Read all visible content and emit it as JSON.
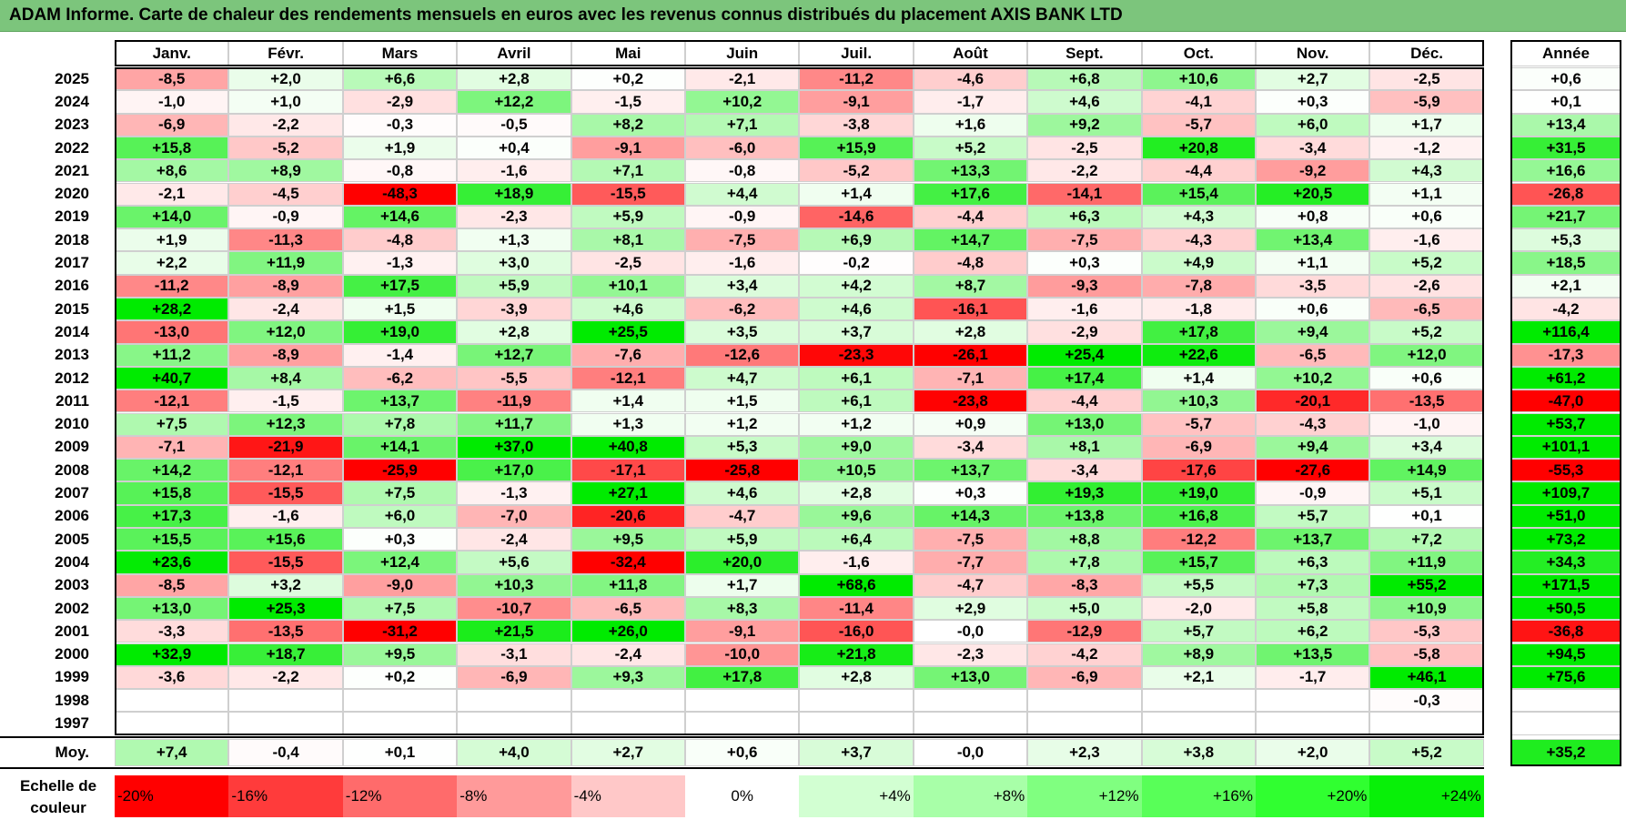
{
  "title": "ADAM Informe. Carte de chaleur des rendements mensuels en euros avec les revenus connus distribués du placement AXIS BANK LTD",
  "chart_data": {
    "type": "heatmap",
    "title": "ADAM Informe. Carte de chaleur des rendements mensuels en euros avec les revenus connus distribués du placement AXIS BANK LTD",
    "months": [
      "Janv.",
      "Févr.",
      "Mars",
      "Avril",
      "Mai",
      "Juin",
      "Juil.",
      "Août",
      "Sept.",
      "Oct.",
      "Nov.",
      "Déc."
    ],
    "year_header": "Année",
    "rows": [
      {
        "year": "2025",
        "values": [
          "-8,5",
          "+2,0",
          "+6,6",
          "+2,8",
          "+0,2",
          "-2,1",
          "-11,2",
          "-4,6",
          "+6,8",
          "+10,6",
          "+2,7",
          "-2,5"
        ],
        "annual": "+0,6"
      },
      {
        "year": "2024",
        "values": [
          "-1,0",
          "+1,0",
          "-2,9",
          "+12,2",
          "-1,5",
          "+10,2",
          "-9,1",
          "-1,7",
          "+4,6",
          "-4,1",
          "+0,3",
          "-5,9"
        ],
        "annual": "+0,1"
      },
      {
        "year": "2023",
        "values": [
          "-6,9",
          "-2,2",
          "-0,3",
          "-0,5",
          "+8,2",
          "+7,1",
          "-3,8",
          "+1,6",
          "+9,2",
          "-5,7",
          "+6,0",
          "+1,7"
        ],
        "annual": "+13,4"
      },
      {
        "year": "2022",
        "values": [
          "+15,8",
          "-5,2",
          "+1,9",
          "+0,4",
          "-9,1",
          "-6,0",
          "+15,9",
          "+5,2",
          "-2,5",
          "+20,8",
          "-3,4",
          "-1,2"
        ],
        "annual": "+31,5"
      },
      {
        "year": "2021",
        "values": [
          "+8,6",
          "+8,9",
          "-0,8",
          "-1,6",
          "+7,1",
          "-0,8",
          "-5,2",
          "+13,3",
          "-2,2",
          "-4,4",
          "-9,2",
          "+4,3"
        ],
        "annual": "+16,6"
      },
      {
        "year": "2020",
        "values": [
          "-2,1",
          "-4,5",
          "-48,3",
          "+18,9",
          "-15,5",
          "+4,4",
          "+1,4",
          "+17,6",
          "-14,1",
          "+15,4",
          "+20,5",
          "+1,1"
        ],
        "annual": "-26,8"
      },
      {
        "year": "2019",
        "values": [
          "+14,0",
          "-0,9",
          "+14,6",
          "-2,3",
          "+5,9",
          "-0,9",
          "-14,6",
          "-4,4",
          "+6,3",
          "+4,3",
          "+0,8",
          "+0,6"
        ],
        "annual": "+21,7"
      },
      {
        "year": "2018",
        "values": [
          "+1,9",
          "-11,3",
          "-4,8",
          "+1,3",
          "+8,1",
          "-7,5",
          "+6,9",
          "+14,7",
          "-7,5",
          "-4,3",
          "+13,4",
          "-1,6"
        ],
        "annual": "+5,3"
      },
      {
        "year": "2017",
        "values": [
          "+2,2",
          "+11,9",
          "-1,3",
          "+3,0",
          "-2,5",
          "-1,6",
          "-0,2",
          "-4,8",
          "+0,3",
          "+4,9",
          "+1,1",
          "+5,2"
        ],
        "annual": "+18,5"
      },
      {
        "year": "2016",
        "values": [
          "-11,2",
          "-8,9",
          "+17,5",
          "+5,9",
          "+10,1",
          "+3,4",
          "+4,2",
          "+8,7",
          "-9,3",
          "-7,8",
          "-3,5",
          "-2,6"
        ],
        "annual": "+2,1"
      },
      {
        "year": "2015",
        "values": [
          "+28,2",
          "-2,4",
          "+1,5",
          "-3,9",
          "+4,6",
          "-6,2",
          "+4,6",
          "-16,1",
          "-1,6",
          "-1,8",
          "+0,6",
          "-6,5"
        ],
        "annual": "-4,2"
      },
      {
        "year": "2014",
        "values": [
          "-13,0",
          "+12,0",
          "+19,0",
          "+2,8",
          "+25,5",
          "+3,5",
          "+3,7",
          "+2,8",
          "-2,9",
          "+17,8",
          "+9,4",
          "+5,2"
        ],
        "annual": "+116,4"
      },
      {
        "year": "2013",
        "values": [
          "+11,2",
          "-8,9",
          "-1,4",
          "+12,7",
          "-7,6",
          "-12,6",
          "-23,3",
          "-26,1",
          "+25,4",
          "+22,6",
          "-6,5",
          "+12,0"
        ],
        "annual": "-17,3"
      },
      {
        "year": "2012",
        "values": [
          "+40,7",
          "+8,4",
          "-6,2",
          "-5,5",
          "-12,1",
          "+4,7",
          "+6,1",
          "-7,1",
          "+17,4",
          "+1,4",
          "+10,2",
          "+0,6"
        ],
        "annual": "+61,2"
      },
      {
        "year": "2011",
        "values": [
          "-12,1",
          "-1,5",
          "+13,7",
          "-11,9",
          "+1,4",
          "+1,5",
          "+6,1",
          "-23,8",
          "-4,4",
          "+10,3",
          "-20,1",
          "-13,5"
        ],
        "annual": "-47,0"
      },
      {
        "year": "2010",
        "values": [
          "+7,5",
          "+12,3",
          "+7,8",
          "+11,7",
          "+1,3",
          "+1,2",
          "+1,2",
          "+0,9",
          "+13,0",
          "-5,7",
          "-4,3",
          "-1,0"
        ],
        "annual": "+53,7"
      },
      {
        "year": "2009",
        "values": [
          "-7,1",
          "-21,9",
          "+14,1",
          "+37,0",
          "+40,8",
          "+5,3",
          "+9,0",
          "-3,4",
          "+8,1",
          "-6,9",
          "+9,4",
          "+3,4"
        ],
        "annual": "+101,1"
      },
      {
        "year": "2008",
        "values": [
          "+14,2",
          "-12,1",
          "-25,9",
          "+17,0",
          "-17,1",
          "-25,8",
          "+10,5",
          "+13,7",
          "-3,4",
          "-17,6",
          "-27,6",
          "+14,9"
        ],
        "annual": "-55,3"
      },
      {
        "year": "2007",
        "values": [
          "+15,8",
          "-15,5",
          "+7,5",
          "-1,3",
          "+27,1",
          "+4,6",
          "+2,8",
          "+0,3",
          "+19,3",
          "+19,0",
          "-0,9",
          "+5,1"
        ],
        "annual": "+109,7"
      },
      {
        "year": "2006",
        "values": [
          "+17,3",
          "-1,6",
          "+6,0",
          "-7,0",
          "-20,6",
          "-4,7",
          "+9,6",
          "+14,3",
          "+13,8",
          "+16,8",
          "+5,7",
          "+0,1"
        ],
        "annual": "+51,0"
      },
      {
        "year": "2005",
        "values": [
          "+15,5",
          "+15,6",
          "+0,3",
          "-2,4",
          "+9,5",
          "+5,9",
          "+6,4",
          "-7,5",
          "+8,8",
          "-12,2",
          "+13,7",
          "+7,2"
        ],
        "annual": "+73,2"
      },
      {
        "year": "2004",
        "values": [
          "+23,6",
          "-15,5",
          "+12,4",
          "+5,6",
          "-32,4",
          "+20,0",
          "-1,6",
          "-7,7",
          "+7,8",
          "+15,7",
          "+6,3",
          "+11,9"
        ],
        "annual": "+34,3"
      },
      {
        "year": "2003",
        "values": [
          "-8,5",
          "+3,2",
          "-9,0",
          "+10,3",
          "+11,8",
          "+1,7",
          "+68,6",
          "-4,7",
          "-8,3",
          "+5,5",
          "+7,3",
          "+55,2"
        ],
        "annual": "+171,5"
      },
      {
        "year": "2002",
        "values": [
          "+13,0",
          "+25,3",
          "+7,5",
          "-10,7",
          "-6,5",
          "+8,3",
          "-11,4",
          "+2,9",
          "+5,0",
          "-2,0",
          "+5,8",
          "+10,9"
        ],
        "annual": "+50,5"
      },
      {
        "year": "2001",
        "values": [
          "-3,3",
          "-13,5",
          "-31,2",
          "+21,5",
          "+26,0",
          "-9,1",
          "-16,0",
          "-0,0",
          "-12,9",
          "+5,7",
          "+6,2",
          "-5,3"
        ],
        "annual": "-36,8"
      },
      {
        "year": "2000",
        "values": [
          "+32,9",
          "+18,7",
          "+9,5",
          "-3,1",
          "-2,4",
          "-10,0",
          "+21,8",
          "-2,3",
          "-4,2",
          "+8,9",
          "+13,5",
          "-5,8"
        ],
        "annual": "+94,5"
      },
      {
        "year": "1999",
        "values": [
          "-3,6",
          "-2,2",
          "+0,2",
          "-6,9",
          "+9,3",
          "+17,8",
          "+2,8",
          "+13,0",
          "-6,9",
          "+2,1",
          "-1,7",
          "+46,1"
        ],
        "annual": "+75,6"
      },
      {
        "year": "1998",
        "values": [
          "",
          "",
          "",
          "",
          "",
          "",
          "",
          "",
          "",
          "",
          "",
          "-0,3"
        ],
        "annual": ""
      },
      {
        "year": "1997",
        "values": [
          "",
          "",
          "",
          "",
          "",
          "",
          "",
          "",
          "",
          "",
          "",
          ""
        ],
        "annual": ""
      }
    ],
    "average": {
      "label": "Moy.",
      "values": [
        "+7,4",
        "-0,4",
        "+0,1",
        "+4,0",
        "+2,7",
        "+0,6",
        "+3,7",
        "-0,0",
        "+2,3",
        "+3,8",
        "+2,0",
        "+5,2"
      ],
      "annual": "+35,2"
    },
    "scale": {
      "label": "Echelle de couleur",
      "stops": [
        "-20%",
        "-16%",
        "-12%",
        "-8%",
        "-4%",
        "0%",
        "+4%",
        "+8%",
        "+12%",
        "+16%",
        "+20%",
        "+24%"
      ],
      "colors": [
        "#ff0000",
        "#ff3b3b",
        "#ff6b6b",
        "#ff9a9a",
        "#ffc8c8",
        "#ffffff",
        "#d2ffd2",
        "#a8ffa8",
        "#80ff80",
        "#58ff58",
        "#30ff30",
        "#08f008"
      ]
    }
  }
}
